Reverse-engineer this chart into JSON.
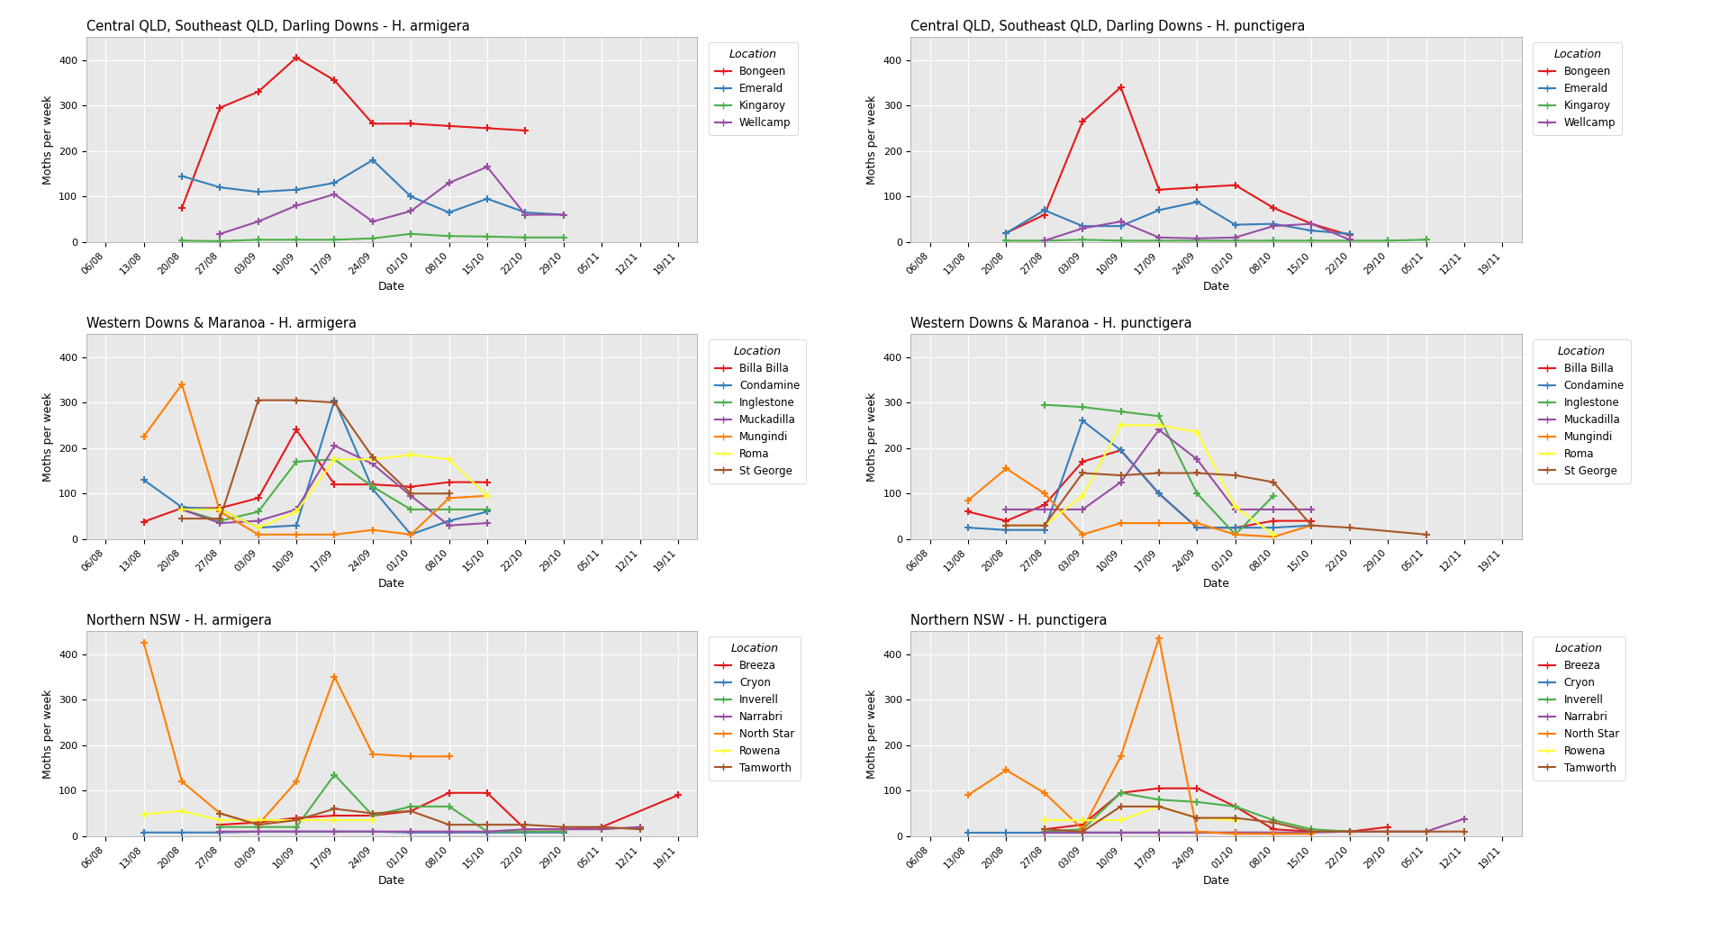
{
  "x_labels": [
    "06/08",
    "13/08",
    "20/08",
    "27/08",
    "03/09",
    "10/09",
    "17/09",
    "24/09",
    "01/10",
    "08/10",
    "15/10",
    "22/10",
    "29/10",
    "05/11",
    "12/11",
    "19/11"
  ],
  "plots": [
    {
      "title": "Central QLD, Southeast QLD, Darling Downs - H. armigera",
      "locations": [
        "Bongeen",
        "Emerald",
        "Kingaroy",
        "Wellcamp"
      ],
      "colors": [
        "#e41a1c",
        "#377eb8",
        "#4daf4a",
        "#984ea3"
      ],
      "data": {
        "Bongeen": [
          null,
          null,
          75,
          295,
          330,
          405,
          355,
          260,
          260,
          255,
          250,
          245,
          null,
          null,
          null,
          null
        ],
        "Emerald": [
          null,
          null,
          145,
          120,
          110,
          115,
          130,
          180,
          100,
          65,
          95,
          65,
          60,
          null,
          null,
          null
        ],
        "Kingaroy": [
          null,
          null,
          3,
          2,
          5,
          5,
          5,
          8,
          18,
          13,
          12,
          10,
          10,
          null,
          null,
          null
        ],
        "Wellcamp": [
          null,
          null,
          null,
          18,
          45,
          80,
          105,
          45,
          68,
          130,
          165,
          60,
          60,
          null,
          null,
          null
        ]
      }
    },
    {
      "title": "Central QLD, Southeast QLD, Darling Downs - H. punctigera",
      "locations": [
        "Bongeen",
        "Emerald",
        "Kingaroy",
        "Wellcamp"
      ],
      "colors": [
        "#e41a1c",
        "#377eb8",
        "#4daf4a",
        "#984ea3"
      ],
      "data": {
        "Bongeen": [
          null,
          null,
          20,
          60,
          265,
          340,
          115,
          120,
          125,
          75,
          40,
          15,
          null,
          null,
          null,
          null
        ],
        "Emerald": [
          null,
          null,
          20,
          70,
          35,
          35,
          70,
          88,
          38,
          40,
          25,
          18,
          null,
          null,
          null,
          null
        ],
        "Kingaroy": [
          null,
          null,
          3,
          3,
          5,
          3,
          3,
          3,
          3,
          3,
          3,
          3,
          3,
          5,
          null,
          null
        ],
        "Wellcamp": [
          null,
          null,
          null,
          3,
          30,
          45,
          10,
          8,
          10,
          35,
          40,
          5,
          null,
          null,
          null,
          null
        ]
      }
    },
    {
      "title": "Western Downs & Maranoa - H. armigera",
      "locations": [
        "Billa Billa",
        "Condamine",
        "Inglestone",
        "Muckadilla",
        "Mungindi",
        "Roma",
        "St George"
      ],
      "colors": [
        "#e41a1c",
        "#377eb8",
        "#4daf4a",
        "#984ea3",
        "#ff7f00",
        "#ffff33",
        "#a65628"
      ],
      "data": {
        "Billa Billa": [
          null,
          38,
          68,
          68,
          90,
          240,
          120,
          120,
          115,
          125,
          125,
          null,
          null,
          null,
          null,
          null
        ],
        "Condamine": [
          null,
          130,
          70,
          65,
          25,
          30,
          305,
          110,
          10,
          40,
          60,
          null,
          null,
          null,
          null,
          null
        ],
        "Inglestone": [
          null,
          null,
          65,
          40,
          60,
          170,
          175,
          115,
          65,
          65,
          65,
          null,
          null,
          null,
          null,
          null
        ],
        "Muckadilla": [
          null,
          null,
          65,
          35,
          40,
          65,
          205,
          165,
          95,
          30,
          35,
          null,
          null,
          null,
          null,
          null
        ],
        "Mungindi": [
          null,
          225,
          340,
          60,
          10,
          10,
          10,
          20,
          10,
          90,
          95,
          null,
          null,
          null,
          null,
          null
        ],
        "Roma": [
          null,
          null,
          65,
          65,
          25,
          60,
          175,
          175,
          185,
          175,
          95,
          null,
          null,
          null,
          null,
          null
        ],
        "St George": [
          null,
          null,
          45,
          45,
          305,
          305,
          300,
          180,
          100,
          100,
          null,
          null,
          null,
          null,
          null,
          null
        ]
      }
    },
    {
      "title": "Western Downs & Maranoa - H. punctigera",
      "locations": [
        "Billa Billa",
        "Condamine",
        "Inglestone",
        "Muckadilla",
        "Mungindi",
        "Roma",
        "St George"
      ],
      "colors": [
        "#e41a1c",
        "#377eb8",
        "#4daf4a",
        "#984ea3",
        "#ff7f00",
        "#ffff33",
        "#a65628"
      ],
      "data": {
        "Billa Billa": [
          null,
          60,
          40,
          75,
          170,
          195,
          100,
          25,
          25,
          40,
          40,
          null,
          null,
          null,
          null,
          null
        ],
        "Condamine": [
          null,
          25,
          20,
          20,
          260,
          195,
          100,
          25,
          25,
          25,
          30,
          null,
          null,
          null,
          null,
          null
        ],
        "Inglestone": [
          null,
          null,
          null,
          295,
          290,
          280,
          270,
          100,
          10,
          95,
          null,
          null,
          null,
          null,
          null,
          null
        ],
        "Muckadilla": [
          null,
          null,
          65,
          65,
          65,
          125,
          240,
          175,
          65,
          65,
          65,
          null,
          null,
          null,
          null,
          null
        ],
        "Mungindi": [
          null,
          85,
          155,
          100,
          10,
          35,
          35,
          35,
          10,
          5,
          30,
          null,
          null,
          null,
          null,
          null
        ],
        "Roma": [
          null,
          null,
          30,
          30,
          95,
          250,
          250,
          235,
          70,
          10,
          null,
          null,
          null,
          null,
          null,
          null
        ],
        "St George": [
          null,
          null,
          30,
          30,
          145,
          140,
          145,
          145,
          140,
          125,
          30,
          25,
          null,
          10,
          null,
          null
        ]
      }
    },
    {
      "title": "Northern NSW - H. armigera",
      "locations": [
        "Breeza",
        "Cryon",
        "Inverell",
        "Narrabri",
        "North Star",
        "Rowena",
        "Tamworth"
      ],
      "colors": [
        "#e41a1c",
        "#377eb8",
        "#4daf4a",
        "#984ea3",
        "#ff7f00",
        "#ffff33",
        "#a65628"
      ],
      "data": {
        "Breeza": [
          null,
          null,
          null,
          25,
          30,
          40,
          45,
          45,
          55,
          95,
          95,
          15,
          15,
          20,
          null,
          90
        ],
        "Cryon": [
          null,
          8,
          8,
          8,
          10,
          10,
          10,
          10,
          8,
          8,
          8,
          8,
          8,
          null,
          null,
          null
        ],
        "Inverell": [
          null,
          null,
          null,
          20,
          20,
          20,
          135,
          45,
          65,
          65,
          10,
          10,
          10,
          null,
          null,
          null
        ],
        "Narrabri": [
          null,
          null,
          null,
          10,
          10,
          10,
          10,
          10,
          10,
          10,
          10,
          15,
          15,
          15,
          20,
          null
        ],
        "North Star": [
          null,
          425,
          120,
          50,
          25,
          120,
          350,
          180,
          175,
          175,
          null,
          null,
          null,
          null,
          null,
          null
        ],
        "Rowena": [
          null,
          48,
          55,
          35,
          35,
          35,
          35,
          35,
          null,
          null,
          null,
          null,
          null,
          null,
          null,
          null
        ],
        "Tamworth": [
          null,
          null,
          null,
          50,
          25,
          35,
          60,
          50,
          55,
          25,
          25,
          25,
          20,
          20,
          15,
          null
        ]
      }
    },
    {
      "title": "Northern NSW - H. punctigera",
      "locations": [
        "Breeza",
        "Cryon",
        "Inverell",
        "Narrabri",
        "North Star",
        "Rowena",
        "Tamworth"
      ],
      "colors": [
        "#e41a1c",
        "#377eb8",
        "#4daf4a",
        "#984ea3",
        "#ff7f00",
        "#ffff33",
        "#a65628"
      ],
      "data": {
        "Breeza": [
          null,
          null,
          null,
          15,
          25,
          95,
          105,
          105,
          65,
          15,
          10,
          10,
          20,
          null,
          null,
          null
        ],
        "Cryon": [
          null,
          8,
          8,
          8,
          8,
          8,
          8,
          8,
          8,
          8,
          null,
          null,
          null,
          null,
          null,
          null
        ],
        "Inverell": [
          null,
          null,
          null,
          10,
          15,
          95,
          80,
          75,
          65,
          35,
          15,
          10,
          null,
          null,
          null,
          null
        ],
        "Narrabri": [
          null,
          null,
          null,
          8,
          8,
          8,
          8,
          8,
          8,
          8,
          8,
          10,
          10,
          10,
          38,
          null
        ],
        "North Star": [
          null,
          90,
          145,
          95,
          15,
          175,
          435,
          10,
          5,
          5,
          5,
          null,
          null,
          null,
          null,
          null
        ],
        "Rowena": [
          null,
          null,
          null,
          35,
          35,
          35,
          65,
          40,
          35,
          null,
          null,
          null,
          null,
          null,
          null,
          null
        ],
        "Tamworth": [
          null,
          null,
          null,
          15,
          10,
          65,
          65,
          40,
          40,
          30,
          10,
          10,
          10,
          10,
          10,
          null
        ]
      }
    }
  ],
  "ylabel": "Moths per week",
  "xlabel": "Date",
  "ylim": [
    0,
    450
  ],
  "yticks": [
    0,
    100,
    200,
    300,
    400
  ],
  "plot_bg": "#e8e8e8",
  "grid_color": "white",
  "fig_bg": "white",
  "legend_title": "Location",
  "line_width": 1.5,
  "marker": "+",
  "marker_size": 6
}
